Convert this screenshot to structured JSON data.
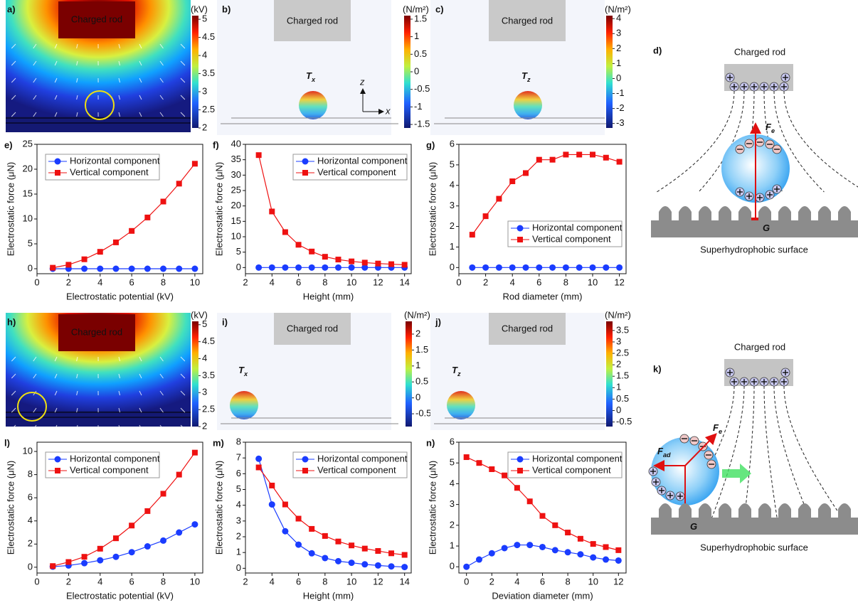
{
  "fields": [
    {
      "label": "a)",
      "rod": "Charged rod",
      "unit": "(kV)",
      "lim": [
        2,
        5.1
      ],
      "ticks": [
        2,
        2.5,
        3,
        3.5,
        4,
        4.5,
        5
      ]
    },
    {
      "label": "h)",
      "rod": "Charged rod",
      "unit": "(kV)",
      "lim": [
        2,
        5.1
      ],
      "ticks": [
        2,
        2.5,
        3,
        3.5,
        4,
        4.5,
        5
      ]
    }
  ],
  "stress": [
    {
      "label": "b)",
      "rod": "Charged rod",
      "symbol": "T",
      "sub": "x",
      "unit": "(N/m²)",
      "lim": [
        -1.6,
        1.6
      ],
      "ticks": [
        -1.5,
        -1,
        -0.5,
        0,
        0.5,
        1,
        1.5
      ],
      "axes": [
        "z",
        "x"
      ]
    },
    {
      "label": "c)",
      "rod": "Charged rod",
      "symbol": "T",
      "sub": "z",
      "unit": "(N/m²)",
      "lim": [
        -3.3,
        4.2
      ],
      "ticks": [
        -3,
        -2,
        -1,
        0,
        1,
        2,
        3,
        4
      ]
    },
    {
      "label": "i)",
      "rod": "Charged rod",
      "symbol": "T",
      "sub": "x",
      "unit": "(N/m²)",
      "lim": [
        -0.9,
        2.4
      ],
      "ticks": [
        -0.5,
        0,
        0.5,
        1,
        1.5,
        2
      ]
    },
    {
      "label": "j)",
      "rod": "Charged rod",
      "symbol": "T",
      "sub": "z",
      "unit": "(N/m²)",
      "lim": [
        -0.7,
        3.9
      ],
      "ticks": [
        -0.5,
        0,
        0.5,
        1,
        1.5,
        2,
        2.5,
        3,
        3.5
      ]
    }
  ],
  "diagrams": [
    {
      "label": "d)",
      "rod": "Charged rod",
      "surface": "Superhydrophobic surface",
      "forces": [
        {
          "symbol": "F",
          "sub": "e"
        },
        {
          "symbol": "G"
        }
      ]
    },
    {
      "label": "k)",
      "rod": "Charged rod",
      "surface": "Superhydrophobic surface",
      "forces": [
        {
          "symbol": "F",
          "sub": "e"
        },
        {
          "symbol": "F",
          "sub": "ad"
        },
        {
          "symbol": "G"
        }
      ]
    }
  ],
  "chart_data": [
    {
      "type": "line",
      "label": "e)",
      "xlabel": "Electrostatic potential (kV)",
      "ylabel": "Electrostatic force (μN)",
      "x": [
        1,
        2,
        3,
        4,
        5,
        6,
        7,
        8,
        9,
        10
      ],
      "xlim": [
        0,
        10.5
      ],
      "xticks": [
        0,
        2,
        4,
        6,
        8,
        10
      ],
      "ylim": [
        -1,
        25
      ],
      "yticks": [
        0,
        5,
        10,
        15,
        20,
        25
      ],
      "legend": "upper left",
      "series": [
        {
          "name": "Horizontal component",
          "color": "#1a3cff",
          "marker": "circle",
          "values": [
            0,
            0,
            0,
            0,
            0,
            0,
            0,
            0,
            0,
            0
          ]
        },
        {
          "name": "Vertical component",
          "color": "#ee1111",
          "marker": "square",
          "values": [
            0.2,
            0.8,
            1.9,
            3.4,
            5.3,
            7.6,
            10.3,
            13.5,
            17.1,
            21.1
          ]
        }
      ]
    },
    {
      "type": "line",
      "label": "f)",
      "xlabel": "Height (mm)",
      "ylabel": "Electrostatic force (μN)",
      "x": [
        3,
        4,
        5,
        6,
        7,
        8,
        9,
        10,
        11,
        12,
        13,
        14
      ],
      "xlim": [
        2,
        14.5
      ],
      "xticks": [
        2,
        4,
        6,
        8,
        10,
        12,
        14
      ],
      "ylim": [
        -2,
        40
      ],
      "yticks": [
        0,
        5,
        10,
        15,
        20,
        25,
        30,
        35,
        40
      ],
      "legend": "upper right",
      "series": [
        {
          "name": "Horizontal component",
          "color": "#1a3cff",
          "marker": "circle",
          "values": [
            0,
            0,
            0,
            0,
            0,
            0,
            0,
            0,
            0,
            0,
            0,
            0
          ]
        },
        {
          "name": "Vertical component",
          "color": "#ee1111",
          "marker": "square",
          "values": [
            36.5,
            18.2,
            11.5,
            7.4,
            5.2,
            3.5,
            2.6,
            2.0,
            1.6,
            1.3,
            1.1,
            0.9
          ]
        }
      ]
    },
    {
      "type": "line",
      "label": "g)",
      "xlabel": "Rod diameter (mm)",
      "ylabel": "Electrostatic force (μN)",
      "x": [
        1,
        2,
        3,
        4,
        5,
        6,
        7,
        8,
        9,
        10,
        11,
        12
      ],
      "xlim": [
        0,
        12.5
      ],
      "xticks": [
        0,
        2,
        4,
        6,
        8,
        10,
        12
      ],
      "ylim": [
        -0.3,
        6
      ],
      "yticks": [
        0,
        1,
        2,
        3,
        4,
        5,
        6
      ],
      "legend": "lower right",
      "series": [
        {
          "name": "Horizontal component",
          "color": "#1a3cff",
          "marker": "circle",
          "values": [
            0,
            0,
            0,
            0,
            0,
            0,
            0,
            0,
            0,
            0,
            0,
            0
          ]
        },
        {
          "name": "Vertical component",
          "color": "#ee1111",
          "marker": "square",
          "values": [
            1.6,
            2.5,
            3.35,
            4.2,
            4.6,
            5.25,
            5.25,
            5.5,
            5.5,
            5.5,
            5.35,
            5.15
          ]
        }
      ]
    },
    {
      "type": "line",
      "label": "l)",
      "xlabel": "Electrostatic potential (kV)",
      "ylabel": "Electrostatic force (μN)",
      "x": [
        1,
        2,
        3,
        4,
        5,
        6,
        7,
        8,
        9,
        10
      ],
      "xlim": [
        0,
        10.5
      ],
      "xticks": [
        0,
        2,
        4,
        6,
        8,
        10
      ],
      "ylim": [
        -0.5,
        10.8
      ],
      "yticks": [
        0,
        2,
        4,
        6,
        8,
        10
      ],
      "legend": "upper left",
      "series": [
        {
          "name": "Horizontal component",
          "color": "#1a3cff",
          "marker": "circle",
          "values": [
            0.05,
            0.15,
            0.35,
            0.6,
            0.9,
            1.3,
            1.8,
            2.3,
            3.0,
            3.7
          ]
        },
        {
          "name": "Vertical component",
          "color": "#ee1111",
          "marker": "square",
          "values": [
            0.1,
            0.45,
            0.9,
            1.6,
            2.5,
            3.6,
            4.85,
            6.35,
            8.0,
            9.9
          ]
        }
      ]
    },
    {
      "type": "line",
      "label": "m)",
      "xlabel": "Height (mm)",
      "ylabel": "Electrostatic force (μN)",
      "x": [
        3,
        4,
        5,
        6,
        7,
        8,
        9,
        10,
        11,
        12,
        13,
        14
      ],
      "xlim": [
        2,
        14.5
      ],
      "xticks": [
        2,
        4,
        6,
        8,
        10,
        12,
        14
      ],
      "ylim": [
        -0.3,
        8
      ],
      "yticks": [
        0,
        1,
        2,
        3,
        4,
        5,
        6,
        7,
        8
      ],
      "legend": "upper right",
      "series": [
        {
          "name": "Horizontal component",
          "color": "#1a3cff",
          "marker": "circle",
          "values": [
            6.95,
            4.05,
            2.35,
            1.5,
            0.95,
            0.65,
            0.45,
            0.35,
            0.25,
            0.18,
            0.12,
            0.08
          ]
        },
        {
          "name": "Vertical component",
          "color": "#ee1111",
          "marker": "square",
          "values": [
            6.4,
            5.25,
            4.05,
            3.15,
            2.5,
            2.05,
            1.7,
            1.45,
            1.25,
            1.1,
            0.95,
            0.85
          ]
        }
      ]
    },
    {
      "type": "line",
      "label": "n)",
      "xlabel": "Deviation diameter (mm)",
      "ylabel": "Electrostatic force (μN)",
      "x": [
        0,
        1,
        2,
        3,
        4,
        5,
        6,
        7,
        8,
        9,
        10,
        11,
        12
      ],
      "xlim": [
        -0.6,
        12.6
      ],
      "xticks": [
        0,
        2,
        4,
        6,
        8,
        10,
        12
      ],
      "ylim": [
        -0.3,
        6
      ],
      "yticks": [
        0,
        1,
        2,
        3,
        4,
        5,
        6
      ],
      "legend": "upper right",
      "series": [
        {
          "name": "Horizontal component",
          "color": "#1a3cff",
          "marker": "circle",
          "values": [
            0,
            0.35,
            0.65,
            0.9,
            1.05,
            1.05,
            0.95,
            0.8,
            0.7,
            0.6,
            0.45,
            0.35,
            0.3
          ]
        },
        {
          "name": "Vertical component",
          "color": "#ee1111",
          "marker": "square",
          "values": [
            5.28,
            5.0,
            4.7,
            4.4,
            3.8,
            3.15,
            2.45,
            2.0,
            1.65,
            1.35,
            1.1,
            0.95,
            0.8
          ]
        }
      ]
    }
  ]
}
